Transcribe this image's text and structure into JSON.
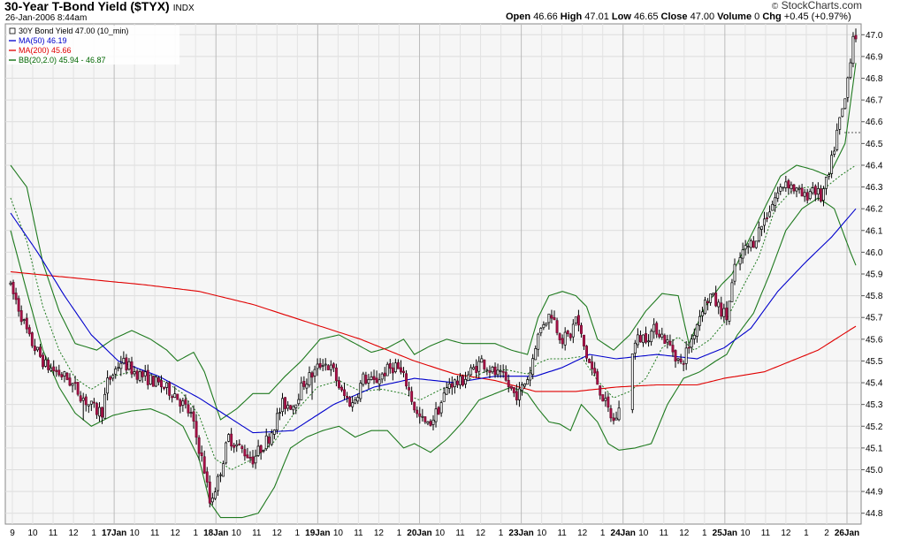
{
  "header": {
    "title": "30-Year T-Bond Yield ($TYX)",
    "exchange": "INDX",
    "date": "26-Jan-2006 8:44am",
    "brand": "StockCharts.com",
    "quote": {
      "open_label": "Open",
      "open": "46.66",
      "high_label": "High",
      "high": "47.01",
      "low_label": "Low",
      "low": "46.65",
      "close_label": "Close",
      "close": "47.00",
      "volume_label": "Volume",
      "volume": "0",
      "chg_label": "Chg",
      "chg": "+0.45 (+0.97%)"
    }
  },
  "legend": [
    {
      "text": "30Y Bond Yield 47.00 (10_min)",
      "color": "#000000"
    },
    {
      "text": "MA(50) 46.19",
      "color": "#0000cc"
    },
    {
      "text": "MA(200) 45.66",
      "color": "#e00000"
    },
    {
      "text": "BB(20,2.0) 45.94 - 46.87",
      "color": "#006600"
    }
  ],
  "chart_data": {
    "type": "candlestick",
    "interval": "10_min",
    "grid": true,
    "ylim": [
      44.75,
      47.05
    ],
    "yticks": [
      44.8,
      44.9,
      45.0,
      45.1,
      45.2,
      45.3,
      45.4,
      45.5,
      45.6,
      45.7,
      45.8,
      45.9,
      46.0,
      46.1,
      46.2,
      46.3,
      46.4,
      46.5,
      46.6,
      46.7,
      46.8,
      46.9,
      47.0
    ],
    "xticks": [
      {
        "label": "9",
        "bold": false
      },
      {
        "label": "10",
        "bold": false
      },
      {
        "label": "11",
        "bold": false
      },
      {
        "label": "12",
        "bold": false
      },
      {
        "label": "1",
        "bold": false
      },
      {
        "label": "17Jan",
        "bold": true
      },
      {
        "label": "10",
        "bold": false
      },
      {
        "label": "11",
        "bold": false
      },
      {
        "label": "12",
        "bold": false
      },
      {
        "label": "1",
        "bold": false
      },
      {
        "label": "18Jan",
        "bold": true
      },
      {
        "label": "10",
        "bold": false
      },
      {
        "label": "11",
        "bold": false
      },
      {
        "label": "12",
        "bold": false
      },
      {
        "label": "1",
        "bold": false
      },
      {
        "label": "19Jan",
        "bold": true
      },
      {
        "label": "10",
        "bold": false
      },
      {
        "label": "11",
        "bold": false
      },
      {
        "label": "12",
        "bold": false
      },
      {
        "label": "1",
        "bold": false
      },
      {
        "label": "20Jan",
        "bold": true
      },
      {
        "label": "10",
        "bold": false
      },
      {
        "label": "11",
        "bold": false
      },
      {
        "label": "12",
        "bold": false
      },
      {
        "label": "1",
        "bold": false
      },
      {
        "label": "23Jan",
        "bold": true
      },
      {
        "label": "10",
        "bold": false
      },
      {
        "label": "11",
        "bold": false
      },
      {
        "label": "12",
        "bold": false
      },
      {
        "label": "1",
        "bold": false
      },
      {
        "label": "24Jan",
        "bold": true
      },
      {
        "label": "10",
        "bold": false
      },
      {
        "label": "11",
        "bold": false
      },
      {
        "label": "12",
        "bold": false
      },
      {
        "label": "1",
        "bold": false
      },
      {
        "label": "25Jan",
        "bold": true
      },
      {
        "label": "10",
        "bold": false
      },
      {
        "label": "11",
        "bold": false
      },
      {
        "label": "12",
        "bold": false
      },
      {
        "label": "1",
        "bold": false
      },
      {
        "label": "2",
        "bold": false
      },
      {
        "label": "26Jan",
        "bold": true
      }
    ],
    "price_anchors": [
      [
        0,
        45.86
      ],
      [
        3,
        45.78
      ],
      [
        8,
        45.6
      ],
      [
        14,
        45.48
      ],
      [
        22,
        45.42
      ],
      [
        30,
        45.3
      ],
      [
        33,
        45.27
      ],
      [
        35,
        45.27
      ],
      [
        37,
        45.4
      ],
      [
        42,
        45.5
      ],
      [
        47,
        45.45
      ],
      [
        55,
        45.4
      ],
      [
        62,
        45.35
      ],
      [
        68,
        45.25
      ],
      [
        73,
        45.0
      ],
      [
        75,
        44.85
      ],
      [
        78,
        44.95
      ],
      [
        82,
        45.15
      ],
      [
        86,
        45.1
      ],
      [
        91,
        45.05
      ],
      [
        97,
        45.15
      ],
      [
        102,
        45.3
      ],
      [
        106,
        45.3
      ],
      [
        110,
        45.4
      ],
      [
        114,
        45.45
      ],
      [
        117,
        45.5
      ],
      [
        121,
        45.45
      ],
      [
        124,
        45.35
      ],
      [
        128,
        45.3
      ],
      [
        132,
        45.42
      ],
      [
        136,
        45.4
      ],
      [
        140,
        45.45
      ],
      [
        144,
        45.48
      ],
      [
        148,
        45.4
      ],
      [
        152,
        45.25
      ],
      [
        156,
        45.2
      ],
      [
        160,
        45.28
      ],
      [
        164,
        45.4
      ],
      [
        168,
        45.4
      ],
      [
        172,
        45.45
      ],
      [
        176,
        45.5
      ],
      [
        180,
        45.45
      ],
      [
        184,
        45.42
      ],
      [
        188,
        45.35
      ],
      [
        190,
        45.35
      ],
      [
        194,
        45.45
      ],
      [
        196,
        45.58
      ],
      [
        199,
        45.68
      ],
      [
        202,
        45.72
      ],
      [
        204,
        45.65
      ],
      [
        206,
        45.6
      ],
      [
        209,
        45.62
      ],
      [
        211,
        45.7
      ],
      [
        215,
        45.52
      ],
      [
        219,
        45.4
      ],
      [
        222,
        45.3
      ],
      [
        225,
        45.22
      ],
      [
        228,
        45.3
      ],
      [
        230,
        45.5
      ],
      [
        234,
        45.6
      ],
      [
        238,
        45.62
      ],
      [
        241,
        45.65
      ],
      [
        244,
        45.6
      ],
      [
        247,
        45.55
      ],
      [
        250,
        45.48
      ],
      [
        254,
        45.6
      ],
      [
        258,
        45.75
      ],
      [
        261,
        45.8
      ],
      [
        264,
        45.75
      ],
      [
        267,
        45.7
      ],
      [
        270,
        45.92
      ],
      [
        273,
        46.0
      ],
      [
        277,
        46.05
      ],
      [
        281,
        46.15
      ],
      [
        285,
        46.25
      ],
      [
        289,
        46.33
      ],
      [
        293,
        46.28
      ],
      [
        296,
        46.25
      ],
      [
        299,
        46.3
      ],
      [
        302,
        46.25
      ],
      [
        305,
        46.35
      ],
      [
        308,
        46.55
      ],
      [
        311,
        46.7
      ],
      [
        314,
        47.0
      ]
    ],
    "price_gaps": [
      [
        226,
        231
      ],
      [
        269,
        271
      ]
    ],
    "price_jumps": [
      [
        27,
        1.7
      ],
      [
        112,
        1.5
      ],
      [
        228,
        1.4
      ]
    ],
    "ma50_anchors": [
      [
        0,
        46.18
      ],
      [
        10,
        46.0
      ],
      [
        20,
        45.8
      ],
      [
        30,
        45.62
      ],
      [
        40,
        45.5
      ],
      [
        55,
        45.43
      ],
      [
        70,
        45.33
      ],
      [
        80,
        45.25
      ],
      [
        90,
        45.17
      ],
      [
        105,
        45.18
      ],
      [
        120,
        45.3
      ],
      [
        135,
        45.38
      ],
      [
        150,
        45.42
      ],
      [
        165,
        45.4
      ],
      [
        180,
        45.43
      ],
      [
        195,
        45.43
      ],
      [
        205,
        45.47
      ],
      [
        215,
        45.53
      ],
      [
        225,
        45.51
      ],
      [
        240,
        45.53
      ],
      [
        255,
        45.51
      ],
      [
        265,
        45.56
      ],
      [
        275,
        45.65
      ],
      [
        285,
        45.82
      ],
      [
        295,
        45.95
      ],
      [
        305,
        46.07
      ],
      [
        314,
        46.2
      ]
    ],
    "ma200_anchors": [
      [
        0,
        45.91
      ],
      [
        25,
        45.88
      ],
      [
        50,
        45.85
      ],
      [
        70,
        45.82
      ],
      [
        90,
        45.76
      ],
      [
        110,
        45.68
      ],
      [
        130,
        45.6
      ],
      [
        150,
        45.5
      ],
      [
        165,
        45.44
      ],
      [
        180,
        45.41
      ],
      [
        195,
        45.36
      ],
      [
        210,
        45.36
      ],
      [
        225,
        45.38
      ],
      [
        240,
        45.39
      ],
      [
        255,
        45.39
      ],
      [
        265,
        45.42
      ],
      [
        280,
        45.45
      ],
      [
        290,
        45.5
      ],
      [
        300,
        45.55
      ],
      [
        314,
        45.66
      ]
    ],
    "bb_upper_anchors": [
      [
        0,
        46.4
      ],
      [
        6,
        46.3
      ],
      [
        12,
        45.95
      ],
      [
        18,
        45.73
      ],
      [
        24,
        45.58
      ],
      [
        32,
        45.55
      ],
      [
        38,
        45.6
      ],
      [
        45,
        45.64
      ],
      [
        52,
        45.6
      ],
      [
        58,
        45.55
      ],
      [
        62,
        45.5
      ],
      [
        68,
        45.54
      ],
      [
        72,
        45.45
      ],
      [
        78,
        45.23
      ],
      [
        84,
        45.28
      ],
      [
        90,
        45.35
      ],
      [
        96,
        45.35
      ],
      [
        102,
        45.43
      ],
      [
        108,
        45.5
      ],
      [
        115,
        45.6
      ],
      [
        122,
        45.62
      ],
      [
        128,
        45.58
      ],
      [
        134,
        45.54
      ],
      [
        140,
        45.56
      ],
      [
        146,
        45.6
      ],
      [
        150,
        45.53
      ],
      [
        156,
        45.57
      ],
      [
        162,
        45.6
      ],
      [
        168,
        45.58
      ],
      [
        174,
        45.58
      ],
      [
        180,
        45.58
      ],
      [
        186,
        45.55
      ],
      [
        192,
        45.53
      ],
      [
        196,
        45.7
      ],
      [
        200,
        45.8
      ],
      [
        205,
        45.82
      ],
      [
        210,
        45.8
      ],
      [
        214,
        45.75
      ],
      [
        218,
        45.6
      ],
      [
        224,
        45.55
      ],
      [
        230,
        45.62
      ],
      [
        236,
        45.73
      ],
      [
        242,
        45.81
      ],
      [
        248,
        45.8
      ],
      [
        252,
        45.58
      ],
      [
        258,
        45.75
      ],
      [
        264,
        45.85
      ],
      [
        268,
        45.9
      ],
      [
        274,
        46.05
      ],
      [
        280,
        46.2
      ],
      [
        286,
        46.35
      ],
      [
        292,
        46.4
      ],
      [
        298,
        46.38
      ],
      [
        304,
        46.35
      ],
      [
        310,
        46.5
      ],
      [
        314,
        46.87
      ]
    ],
    "bb_lower_anchors": [
      [
        0,
        46.1
      ],
      [
        6,
        45.82
      ],
      [
        12,
        45.55
      ],
      [
        18,
        45.38
      ],
      [
        24,
        45.26
      ],
      [
        30,
        45.2
      ],
      [
        38,
        45.25
      ],
      [
        45,
        45.27
      ],
      [
        52,
        45.28
      ],
      [
        58,
        45.25
      ],
      [
        64,
        45.2
      ],
      [
        70,
        45.05
      ],
      [
        74,
        44.85
      ],
      [
        78,
        44.78
      ],
      [
        86,
        44.78
      ],
      [
        92,
        44.8
      ],
      [
        98,
        44.92
      ],
      [
        104,
        45.1
      ],
      [
        110,
        45.15
      ],
      [
        116,
        45.18
      ],
      [
        122,
        45.2
      ],
      [
        128,
        45.15
      ],
      [
        134,
        45.18
      ],
      [
        140,
        45.18
      ],
      [
        146,
        45.1
      ],
      [
        150,
        45.12
      ],
      [
        156,
        45.08
      ],
      [
        162,
        45.14
      ],
      [
        168,
        45.22
      ],
      [
        174,
        45.32
      ],
      [
        180,
        45.35
      ],
      [
        186,
        45.38
      ],
      [
        192,
        45.35
      ],
      [
        196,
        45.28
      ],
      [
        200,
        45.22
      ],
      [
        204,
        45.21
      ],
      [
        208,
        45.18
      ],
      [
        212,
        45.3
      ],
      [
        218,
        45.22
      ],
      [
        222,
        45.12
      ],
      [
        226,
        45.09
      ],
      [
        232,
        45.1
      ],
      [
        238,
        45.12
      ],
      [
        244,
        45.3
      ],
      [
        250,
        45.42
      ],
      [
        256,
        45.45
      ],
      [
        262,
        45.5
      ],
      [
        266,
        45.53
      ],
      [
        270,
        45.62
      ],
      [
        276,
        45.72
      ],
      [
        282,
        45.9
      ],
      [
        288,
        46.1
      ],
      [
        294,
        46.2
      ],
      [
        300,
        46.25
      ],
      [
        306,
        46.2
      ],
      [
        312,
        46.0
      ],
      [
        314,
        45.94
      ]
    ],
    "bb_mid_anchors": [
      [
        0,
        46.25
      ],
      [
        6,
        46.05
      ],
      [
        12,
        45.75
      ],
      [
        18,
        45.55
      ],
      [
        24,
        45.42
      ],
      [
        30,
        45.37
      ],
      [
        38,
        45.43
      ],
      [
        45,
        45.45
      ],
      [
        52,
        45.44
      ],
      [
        58,
        45.4
      ],
      [
        64,
        45.35
      ],
      [
        70,
        45.25
      ],
      [
        76,
        45.05
      ],
      [
        82,
        45.0
      ],
      [
        90,
        45.05
      ],
      [
        98,
        45.13
      ],
      [
        106,
        45.27
      ],
      [
        114,
        45.38
      ],
      [
        122,
        45.41
      ],
      [
        130,
        45.36
      ],
      [
        138,
        45.37
      ],
      [
        146,
        45.35
      ],
      [
        152,
        45.32
      ],
      [
        160,
        45.37
      ],
      [
        168,
        45.4
      ],
      [
        176,
        45.45
      ],
      [
        184,
        45.46
      ],
      [
        192,
        45.44
      ],
      [
        196,
        45.49
      ],
      [
        200,
        45.51
      ],
      [
        206,
        45.51
      ],
      [
        212,
        45.52
      ],
      [
        218,
        45.41
      ],
      [
        224,
        45.33
      ],
      [
        230,
        45.36
      ],
      [
        236,
        45.42
      ],
      [
        242,
        45.56
      ],
      [
        248,
        45.61
      ],
      [
        254,
        45.55
      ],
      [
        260,
        45.6
      ],
      [
        266,
        45.69
      ],
      [
        272,
        45.84
      ],
      [
        278,
        45.98
      ],
      [
        284,
        46.2
      ],
      [
        290,
        46.28
      ],
      [
        296,
        46.3
      ],
      [
        302,
        46.29
      ],
      [
        308,
        46.35
      ],
      [
        314,
        46.4
      ]
    ]
  }
}
